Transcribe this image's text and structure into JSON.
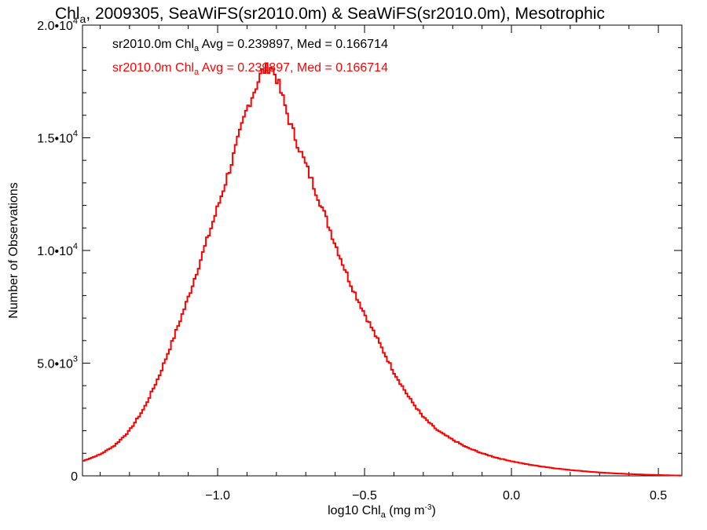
{
  "chart_data": {
    "type": "line",
    "title": "Chl",
    "title_sub": "a",
    "title_rest": ", 2009305, SeaWiFS(sr2010.0m) & SeaWiFS(sr2010.0m), Mesotrophic",
    "xlabel_pre": "log10 Chl",
    "xlabel_sub": "a",
    "xlabel_unit": " (mg m",
    "xlabel_sup": "-3",
    "xlabel_close": ")",
    "ylabel": "Number of Observations",
    "xlim": [
      -1.46,
      0.58
    ],
    "ylim": [
      0,
      20000
    ],
    "x_ticks": [
      {
        "value": -1.0,
        "label": "−1.0"
      },
      {
        "value": -0.5,
        "label": "−0.5"
      },
      {
        "value": 0.0,
        "label": "0.0"
      },
      {
        "value": 0.5,
        "label": "0.5"
      }
    ],
    "y_ticks": [
      {
        "value": 0,
        "mant": "0",
        "exp": ""
      },
      {
        "value": 5000,
        "mant": "5.0•10",
        "exp": "3"
      },
      {
        "value": 10000,
        "mant": "1.0•10",
        "exp": "4"
      },
      {
        "value": 15000,
        "mant": "1.5•10",
        "exp": "4"
      },
      {
        "value": 20000,
        "mant": "2.0•10",
        "exp": "4"
      }
    ],
    "legend": [
      {
        "prefix": "sr2010.0m Chl",
        "sub": "a",
        "suffix": " Avg = 0.239897, Med = 0.166714",
        "color": "#000000"
      },
      {
        "prefix": "sr2010.0m Chl",
        "sub": "a",
        "suffix": " Avg = 0.239897, Med = 0.166714",
        "color": "#ff0000"
      }
    ],
    "grid": false,
    "legend_position": "top-left",
    "series": [
      {
        "color": "#ff0000",
        "x": [
          -1.46,
          -1.4,
          -1.35,
          -1.3,
          -1.25,
          -1.2,
          -1.15,
          -1.1,
          -1.05,
          -1.0,
          -0.95,
          -0.9,
          -0.85,
          -0.82,
          -0.8,
          -0.75,
          -0.7,
          -0.65,
          -0.6,
          -0.55,
          -0.5,
          -0.45,
          -0.4,
          -0.35,
          -0.3,
          -0.25,
          -0.2,
          -0.15,
          -0.1,
          -0.05,
          0.0,
          0.05,
          0.1,
          0.15,
          0.2,
          0.25,
          0.3,
          0.35,
          0.4,
          0.45,
          0.5,
          0.55,
          0.58
        ],
        "values": [
          650,
          950,
          1350,
          2000,
          3000,
          4400,
          6100,
          7900,
          9900,
          11900,
          14000,
          16300,
          17900,
          18200,
          17700,
          15500,
          13800,
          12100,
          10300,
          8600,
          7200,
          5900,
          4600,
          3500,
          2600,
          2000,
          1600,
          1250,
          1000,
          800,
          650,
          520,
          420,
          330,
          260,
          200,
          150,
          110,
          80,
          55,
          35,
          20,
          12
        ]
      }
    ]
  }
}
